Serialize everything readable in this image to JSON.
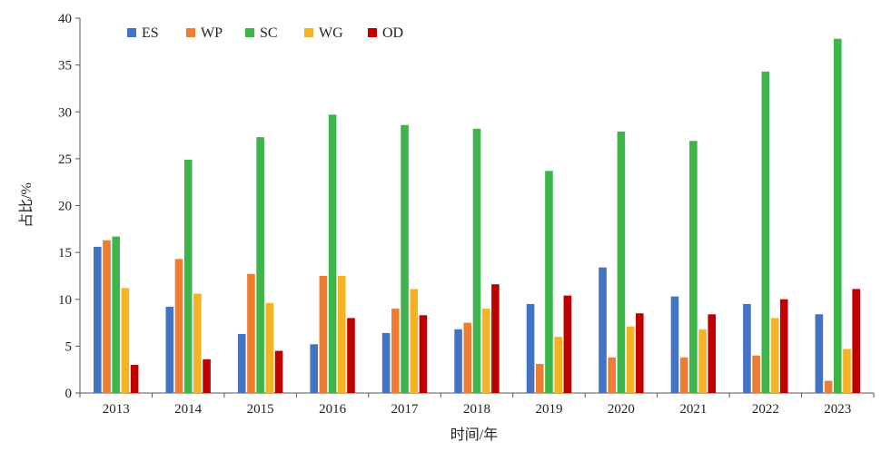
{
  "chart_data": {
    "type": "bar",
    "categories": [
      "2013",
      "2014",
      "2015",
      "2016",
      "2017",
      "2018",
      "2019",
      "2020",
      "2021",
      "2022",
      "2023"
    ],
    "series": [
      {
        "name": "ES",
        "color": "#4472C4",
        "values": [
          15.6,
          9.2,
          6.3,
          5.2,
          6.4,
          6.8,
          9.5,
          13.4,
          10.3,
          9.5,
          8.4
        ]
      },
      {
        "name": "WP",
        "color": "#ED7D31",
        "values": [
          16.3,
          14.3,
          12.7,
          12.5,
          9.0,
          7.5,
          3.1,
          3.8,
          3.8,
          4.0,
          1.3
        ]
      },
      {
        "name": "SC",
        "color": "#3DB54A",
        "values": [
          16.7,
          24.9,
          27.3,
          29.7,
          28.6,
          28.2,
          23.7,
          27.9,
          26.9,
          34.3,
          37.8
        ]
      },
      {
        "name": "WG",
        "color": "#F5B324",
        "values": [
          11.2,
          10.6,
          9.6,
          12.5,
          11.1,
          9.0,
          6.0,
          7.1,
          6.8,
          8.0,
          4.7
        ]
      },
      {
        "name": "OD",
        "color": "#C00000",
        "values": [
          3.0,
          3.6,
          4.5,
          8.0,
          8.3,
          11.6,
          10.4,
          8.5,
          8.4,
          10.0,
          11.1
        ]
      }
    ],
    "xlabel": "时间/年",
    "ylabel": "占比/%",
    "ylim": [
      0,
      40
    ],
    "yticks": [
      0,
      5,
      10,
      15,
      20,
      25,
      30,
      35,
      40
    ],
    "grid": false,
    "legend": "top-left"
  }
}
